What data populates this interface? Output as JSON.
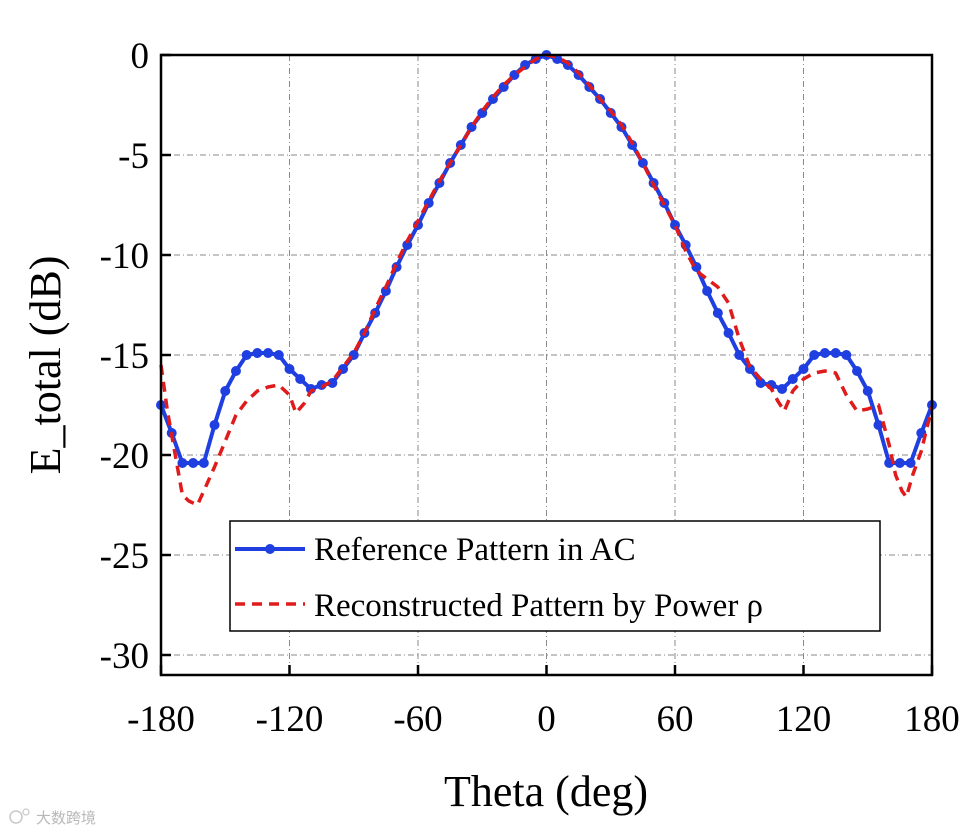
{
  "chart_data": {
    "type": "line",
    "xlabel": "Theta (deg)",
    "ylabel": "E_total (dB)",
    "xlim": [
      -180,
      180
    ],
    "ylim": [
      -31,
      0
    ],
    "xticks": [
      -180,
      -120,
      -60,
      0,
      60,
      120,
      180
    ],
    "yticks": [
      0,
      -5,
      -10,
      -15,
      -20,
      -25,
      -30
    ],
    "grid": true,
    "legend_position": "bottom-center",
    "series": [
      {
        "name": "Reference Pattern in AC",
        "color": "#1f3fe0",
        "style": "solid-with-markers",
        "x": [
          -180,
          -175,
          -170,
          -165,
          -160,
          -155,
          -150,
          -145,
          -140,
          -135,
          -130,
          -125,
          -120,
          -115,
          -110,
          -105,
          -100,
          -95,
          -90,
          -85,
          -80,
          -75,
          -70,
          -65,
          -60,
          -55,
          -50,
          -45,
          -40,
          -35,
          -30,
          -25,
          -20,
          -15,
          -10,
          -5,
          0,
          5,
          10,
          15,
          20,
          25,
          30,
          35,
          40,
          45,
          50,
          55,
          60,
          65,
          70,
          75,
          80,
          85,
          90,
          95,
          100,
          105,
          110,
          115,
          120,
          125,
          130,
          135,
          140,
          145,
          150,
          155,
          160,
          165,
          170,
          175,
          180
        ],
        "y": [
          -17.5,
          -18.9,
          -20.4,
          -20.4,
          -20.4,
          -18.5,
          -16.8,
          -15.8,
          -15.0,
          -14.9,
          -14.9,
          -15.0,
          -15.7,
          -16.2,
          -16.7,
          -16.5,
          -16.4,
          -15.7,
          -15.0,
          -13.9,
          -12.9,
          -11.8,
          -10.6,
          -9.5,
          -8.5,
          -7.4,
          -6.4,
          -5.4,
          -4.5,
          -3.6,
          -2.9,
          -2.2,
          -1.6,
          -1.0,
          -0.5,
          -0.2,
          0.0,
          -0.2,
          -0.5,
          -1.0,
          -1.6,
          -2.2,
          -2.9,
          -3.6,
          -4.5,
          -5.4,
          -6.4,
          -7.4,
          -8.5,
          -9.5,
          -10.6,
          -11.8,
          -12.9,
          -13.9,
          -15.0,
          -15.7,
          -16.4,
          -16.5,
          -16.7,
          -16.2,
          -15.7,
          -15.0,
          -14.9,
          -14.9,
          -15.0,
          -15.8,
          -16.8,
          -18.5,
          -20.4,
          -20.4,
          -20.4,
          -18.9,
          -17.5
        ]
      },
      {
        "name": "Reconstructed Pattern by Power ρ",
        "color": "#e01b1b",
        "style": "dashed",
        "x": [
          -180,
          -177,
          -173,
          -170,
          -167,
          -163,
          -160,
          -155,
          -150,
          -145,
          -140,
          -135,
          -130,
          -125,
          -120,
          -117,
          -113,
          -110,
          -105,
          -100,
          -95,
          -90,
          -85,
          -80,
          -75,
          -70,
          -65,
          -60,
          -55,
          -50,
          -45,
          -40,
          -35,
          -30,
          -25,
          -20,
          -15,
          -10,
          -5,
          0,
          5,
          10,
          15,
          20,
          25,
          30,
          35,
          40,
          45,
          50,
          55,
          60,
          65,
          70,
          75,
          80,
          85,
          90,
          95,
          100,
          105,
          108,
          111,
          115,
          120,
          125,
          130,
          135,
          140,
          145,
          150,
          155,
          160,
          163,
          166,
          168,
          171,
          175,
          180
        ],
        "y": [
          -15.5,
          -17.8,
          -20.2,
          -22.0,
          -22.3,
          -22.5,
          -21.8,
          -20.6,
          -19.3,
          -18.0,
          -17.3,
          -16.8,
          -16.6,
          -16.5,
          -17.0,
          -17.9,
          -17.4,
          -16.8,
          -16.6,
          -16.3,
          -15.6,
          -14.9,
          -13.9,
          -12.7,
          -11.6,
          -10.4,
          -9.3,
          -8.3,
          -7.3,
          -6.3,
          -5.4,
          -4.5,
          -3.6,
          -2.8,
          -2.1,
          -1.5,
          -1.0,
          -0.6,
          -0.2,
          0.0,
          -0.1,
          -0.4,
          -0.9,
          -1.5,
          -2.2,
          -2.8,
          -3.5,
          -4.4,
          -5.4,
          -6.5,
          -7.5,
          -8.5,
          -9.8,
          -10.8,
          -11.2,
          -11.6,
          -12.4,
          -14.2,
          -15.6,
          -16.2,
          -16.7,
          -17.3,
          -17.8,
          -16.8,
          -16.2,
          -15.9,
          -15.8,
          -15.9,
          -17.0,
          -17.8,
          -17.7,
          -17.5,
          -19.5,
          -21.0,
          -21.8,
          -22.1,
          -21.0,
          -19.8,
          -17.6
        ]
      }
    ]
  },
  "watermark": "大数跨境"
}
